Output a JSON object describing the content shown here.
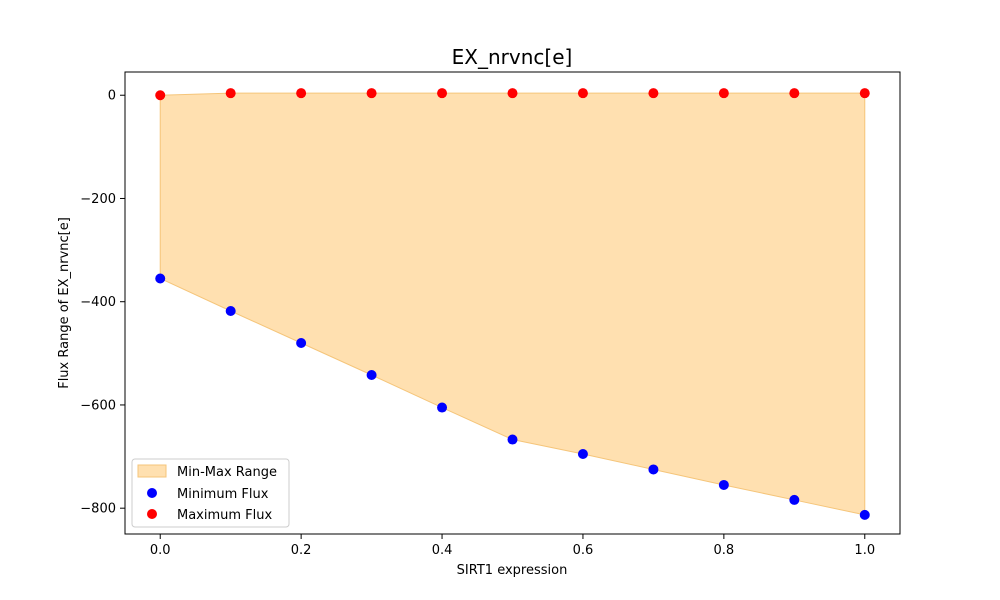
{
  "chart_data": {
    "type": "scatter",
    "title": "EX_nrvnc[e]",
    "xlabel": "SIRT1 expression",
    "ylabel": "Flux Range of EX_nrvnc[e]",
    "xlim": [
      -0.05,
      1.05
    ],
    "ylim": [
      -850,
      45
    ],
    "xticks": [
      0.0,
      0.2,
      0.4,
      0.6,
      0.8,
      1.0
    ],
    "xtick_labels": [
      "0.0",
      "0.2",
      "0.4",
      "0.6",
      "0.8",
      "1.0"
    ],
    "yticks": [
      0,
      -200,
      -400,
      -600,
      -800
    ],
    "ytick_labels": [
      "0",
      "−200",
      "−400",
      "−600",
      "−800"
    ],
    "grid": false,
    "legend_position": "lower-left",
    "x": [
      0.0,
      0.1,
      0.2,
      0.3,
      0.4,
      0.5,
      0.6,
      0.7,
      0.8,
      0.9,
      1.0
    ],
    "series": [
      {
        "name": "Minimum Flux",
        "kind": "scatter",
        "color": "#0000ff",
        "values": [
          -355,
          -418,
          -480,
          -542,
          -605,
          -667,
          -695,
          -725,
          -755,
          -784,
          -813
        ]
      },
      {
        "name": "Maximum Flux",
        "kind": "scatter",
        "color": "#ff0000",
        "values": [
          0,
          4,
          4,
          4,
          4,
          4,
          4,
          4,
          4,
          4,
          4
        ]
      }
    ],
    "fill_between": {
      "name": "Min-Max Range",
      "color": "#ffe0b0",
      "edge_color": "#f5c57a",
      "lower_series": "Minimum Flux",
      "upper_series": "Maximum Flux"
    }
  }
}
